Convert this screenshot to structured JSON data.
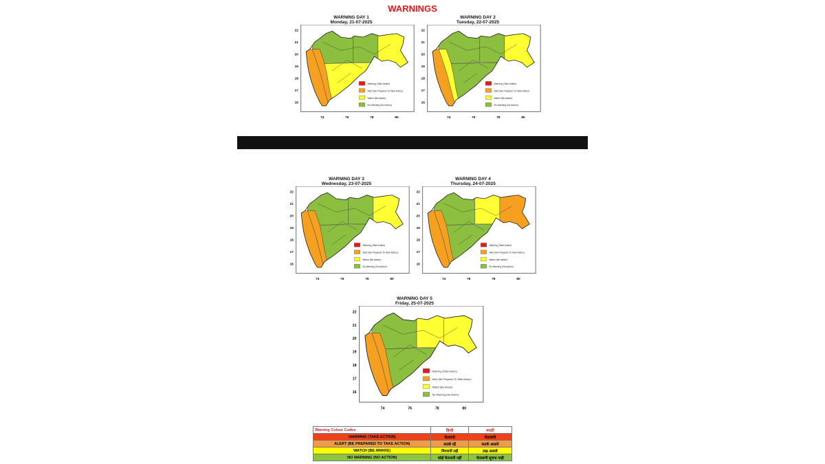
{
  "title": "WARNINGS",
  "legend": [
    "Warning (Take Action)",
    "Alert (Be Prepared To Take Action)",
    "Watch (Be Aware)",
    "No Warning (No Action)"
  ],
  "colors": {
    "warning": "#e41a1c",
    "alert": "#f5a020",
    "watch": "#ffff33",
    "none": "#8cbf3f"
  },
  "x_ticks": [
    "74",
    "76",
    "78",
    "80"
  ],
  "y_ticks": [
    "22",
    "21",
    "20",
    "19",
    "18",
    "17",
    "16"
  ],
  "days": [
    {
      "title": "WARNING DAY 1",
      "date": "Monday, 21-07-2025",
      "regions": {
        "konkan": "alert",
        "ghat": "alert",
        "north": "none",
        "south": "watch",
        "vidarbha_west": "none",
        "vidarbha_east": "watch"
      }
    },
    {
      "title": "WARNING DAY 2",
      "date": "Tuesday, 22-07-2025",
      "regions": {
        "konkan": "alert",
        "ghat": "watch",
        "north": "none",
        "south": "none",
        "vidarbha_west": "none",
        "vidarbha_east": "watch"
      }
    },
    {
      "title": "WARNING DAY 3",
      "date": "Wednesday, 23-07-2025",
      "regions": {
        "konkan": "alert",
        "ghat": "alert",
        "north": "none",
        "south": "none",
        "vidarbha_west": "none",
        "vidarbha_east": "watch"
      }
    },
    {
      "title": "WARNING DAY 4",
      "date": "Thursday, 24-07-2025",
      "regions": {
        "konkan": "alert",
        "ghat": "alert",
        "north": "none",
        "south": "none",
        "vidarbha_west": "watch",
        "vidarbha_east": "alert"
      }
    },
    {
      "title": "WARNING DAY 5",
      "date": "Friday, 25-07-2025",
      "regions": {
        "konkan": "alert",
        "ghat": "alert",
        "north": "none",
        "south": "none",
        "vidarbha_west": "watch",
        "vidarbha_east": "watch"
      }
    }
  ],
  "code_table": {
    "headers": [
      "Warning Colour Codes",
      "हिन्दी",
      "मराठी"
    ],
    "rows": [
      {
        "level": "warning",
        "cells": [
          "WARNING (TAKE ACTION)",
          "चेतावनी",
          "चेतावणी"
        ]
      },
      {
        "level": "alert",
        "cells": [
          "ALERT (BE PREPARED TO TAKE ACTION)",
          "सतर्क रहें",
          "सतर्क असावे"
        ]
      },
      {
        "level": "watch",
        "cells": [
          "WATCH (BE AWARE)",
          "निगरानी रखें",
          "लक्ष असावे"
        ]
      },
      {
        "level": "none",
        "cells": [
          "NO WARNING (NO ACTION)",
          "कोई चेतावनी नहीं",
          "चेतावणी सूचना नाही"
        ]
      }
    ]
  }
}
